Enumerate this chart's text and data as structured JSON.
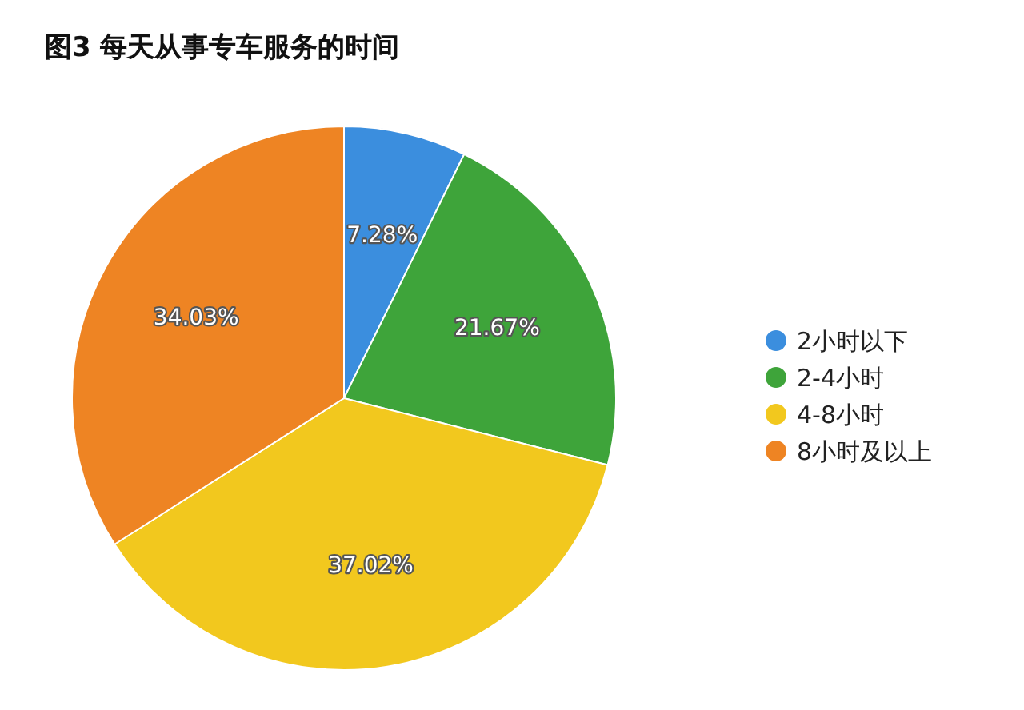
{
  "chart_data": {
    "type": "pie",
    "title": "图3 每天从事专车服务的时间",
    "categories": [
      "2小时以下",
      "2-4小时",
      "4-8小时",
      "8小时及以上"
    ],
    "values": [
      7.28,
      21.67,
      37.02,
      34.03
    ],
    "value_labels": [
      "7.28%",
      "21.67%",
      "37.02%",
      "34.03%"
    ],
    "colors": [
      "#3b8ede",
      "#3ea43a",
      "#f2c81e",
      "#ee8423"
    ],
    "legend": "right"
  }
}
